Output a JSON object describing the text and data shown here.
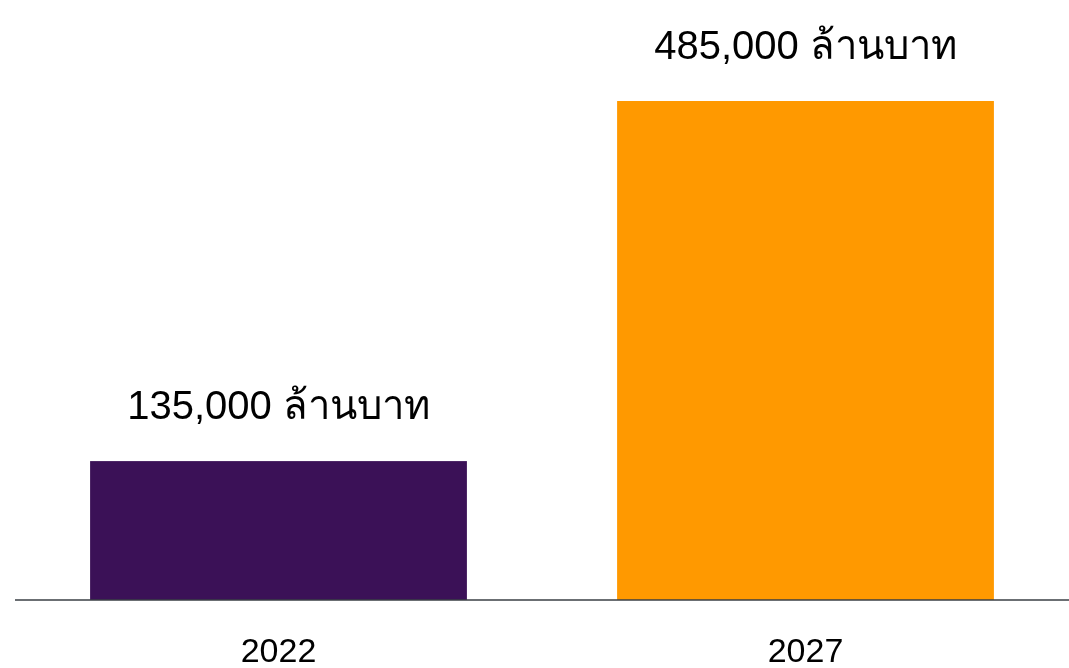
{
  "chart_data": {
    "type": "bar",
    "categories": [
      "2022",
      "2027"
    ],
    "values": [
      135000,
      485000
    ],
    "colors": [
      "#3b1157",
      "#ff9900"
    ],
    "value_labels": [
      "135,000 ล้านบาท",
      "485,000 ล้านบาท"
    ]
  }
}
